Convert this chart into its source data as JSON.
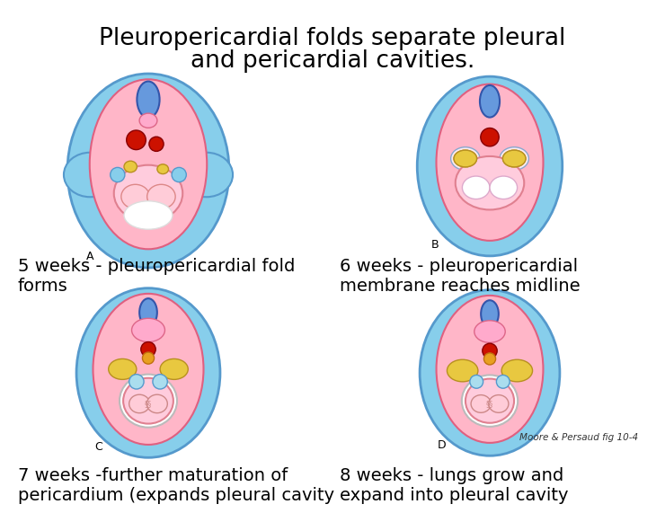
{
  "title_line1": "Pleuropericardial folds separate pleural",
  "title_line2": "and pericardial cavities.",
  "title_fontsize": 19,
  "title_color": "#000000",
  "background_color": "#ffffff",
  "caption_top_left": "5 weeks - pleuropericardial fold\nforms",
  "caption_top_right": "6 weeks - pleuropericardial\nmembrane reaches midline",
  "caption_bot_left": "7 weeks -further maturation of\npericardium (expands pleural cavity",
  "caption_bot_right": "8 weeks - lungs grow and\nexpand into pleural cavity",
  "caption_fontsize": 14,
  "caption_color": "#000000",
  "moore_credit": "Moore & Persaud fig 10-4",
  "blue_outer": "#87CEEB",
  "blue_outer_edge": "#5599CC",
  "pink_body": "#FFB6C8",
  "pink_body_edge": "#E06080",
  "blue_notochord": "#6699DD",
  "blue_notochord_edge": "#3355AA",
  "red_dot": "#CC1100",
  "red_dot_edge": "#880000",
  "yellow_lung": "#E8C840",
  "yellow_lung_edge": "#B89020",
  "pink_inner": "#FFCCD8",
  "pink_inner_edge": "#E080A0",
  "white": "#FFFFFF",
  "label_fontsize": 9
}
